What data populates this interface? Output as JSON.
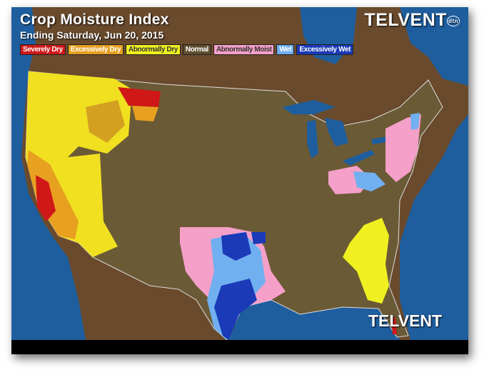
{
  "header": {
    "title": "Crop Moisture Index",
    "subtitle": "Ending Saturday, Jun 20, 2015",
    "logo_text": "TELVENT",
    "logo_badge": "dtn",
    "bottom_logo_text": "TELVENT"
  },
  "legend": [
    {
      "label": "Severely Dry",
      "color": "#d01818",
      "text_color": "#ffffff"
    },
    {
      "label": "Excessively Dry",
      "color": "#e8a020",
      "text_color": "#ffffff"
    },
    {
      "label": "Abnormally Dry",
      "color": "#f0f020",
      "text_color": "#333333"
    },
    {
      "label": "Normal",
      "color": "#5e4e30",
      "text_color": "#ffffff"
    },
    {
      "label": "Abnormally Moist",
      "color": "#f4a0c8",
      "text_color": "#333333"
    },
    {
      "label": "Wet",
      "color": "#70b0f0",
      "text_color": "#ffffff"
    },
    {
      "label": "Excessively Wet",
      "color": "#1a3ab8",
      "text_color": "#ffffff"
    }
  ],
  "colors": {
    "water": "#1e5e9e",
    "land_us": "#6b5a36",
    "land_other": "#6a4a2c"
  }
}
